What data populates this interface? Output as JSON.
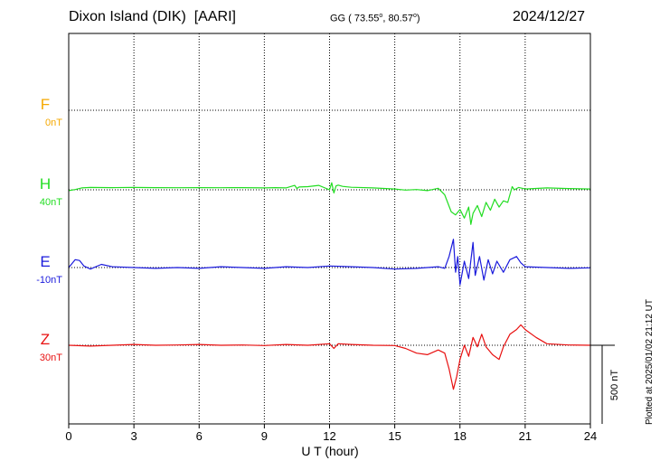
{
  "header": {
    "station": "Dixon Island (DIK)",
    "institute": "[AARI]",
    "coords_prefix": "GG ( 73.55",
    "coords_lat_sup": "o",
    "coords_mid": ",  80.57",
    "coords_lon_sup": "o",
    "coords_suffix": ")",
    "date": "2024/12/27"
  },
  "plotted_note": "Plotted at 2025/01/02 21:12 UT",
  "chart_data": {
    "type": "line",
    "xlabel": "U T (hour)",
    "xlim": [
      0,
      24
    ],
    "x_ticks": [
      0,
      3,
      6,
      9,
      12,
      15,
      18,
      21,
      24
    ],
    "grid": true,
    "scale_bar_label": "500 nT",
    "scale_bar_nT": 500,
    "series": [
      {
        "name": "F",
        "baseline_label": "0nT",
        "color": "#f5a800",
        "baseline_nT": 0,
        "x": [],
        "y": []
      },
      {
        "name": "H",
        "baseline_label": "40nT",
        "color": "#22dd22",
        "baseline_nT": 40,
        "x": [
          0,
          0.3,
          0.6,
          1,
          2,
          3,
          4,
          5,
          6,
          7,
          8,
          9,
          9.5,
          10,
          10.4,
          10.5,
          10.6,
          11,
          11.5,
          12,
          12.1,
          12.2,
          12.3,
          12.4,
          12.6,
          13,
          14,
          15,
          15.5,
          16,
          16.5,
          17,
          17.3,
          17.6,
          17.8,
          18,
          18.2,
          18.4,
          18.5,
          18.6,
          18.8,
          19,
          19.2,
          19.4,
          19.6,
          19.8,
          20,
          20.2,
          20.4,
          20.5,
          20.7,
          21,
          22,
          23,
          24
        ],
        "y": [
          35,
          42,
          52,
          55,
          54,
          55,
          54,
          53,
          54,
          53,
          54,
          52,
          54,
          52,
          68,
          48,
          58,
          60,
          68,
          40,
          85,
          20,
          65,
          70,
          62,
          56,
          52,
          45,
          38,
          42,
          35,
          50,
          8,
          -100,
          -120,
          -85,
          -140,
          -70,
          -180,
          -110,
          -60,
          -130,
          -40,
          -90,
          -20,
          -70,
          -30,
          -40,
          60,
          40,
          55,
          45,
          52,
          48,
          45
        ]
      },
      {
        "name": "E",
        "baseline_label": "-10nT",
        "color": "#1a1adc",
        "baseline_nT": -10,
        "x": [
          0,
          0.3,
          0.5,
          0.7,
          1,
          1.5,
          2,
          3,
          4,
          5,
          6,
          7,
          8,
          9,
          10,
          11,
          12,
          13,
          14,
          15,
          16,
          17,
          17.3,
          17.5,
          17.7,
          17.8,
          17.9,
          18,
          18.2,
          18.4,
          18.6,
          18.7,
          18.9,
          19.1,
          19.3,
          19.5,
          19.7,
          20,
          20.3,
          20.6,
          20.8,
          21,
          22,
          23,
          24
        ],
        "y": [
          -10,
          40,
          35,
          0,
          -20,
          10,
          -5,
          -10,
          -15,
          -10,
          -15,
          -5,
          -10,
          -15,
          -5,
          -10,
          0,
          -5,
          -10,
          -20,
          -15,
          -5,
          -15,
          60,
          170,
          -40,
          60,
          -120,
          30,
          -80,
          150,
          -60,
          60,
          -90,
          40,
          -50,
          30,
          -40,
          40,
          60,
          20,
          -5,
          -10,
          -15,
          -12
        ]
      },
      {
        "name": "Z",
        "baseline_label": "30nT",
        "color": "#e81010",
        "baseline_nT": 30,
        "x": [
          0,
          1,
          2,
          3,
          4,
          5,
          6,
          7,
          8,
          9,
          10,
          11,
          12,
          12.2,
          12.4,
          13,
          14,
          15,
          15.5,
          16,
          16.5,
          17,
          17.3,
          17.5,
          17.7,
          17.85,
          18,
          18.2,
          18.4,
          18.6,
          18.8,
          19,
          19.2,
          19.5,
          19.8,
          20,
          20.3,
          20.6,
          20.8,
          21,
          21.5,
          22,
          23,
          24
        ],
        "y": [
          30,
          25,
          30,
          35,
          30,
          32,
          35,
          30,
          32,
          28,
          35,
          30,
          40,
          10,
          40,
          35,
          30,
          28,
          10,
          -20,
          -30,
          0,
          -20,
          -120,
          -250,
          -170,
          -60,
          30,
          -40,
          80,
          20,
          100,
          20,
          -30,
          -60,
          20,
          100,
          130,
          160,
          130,
          80,
          40,
          32,
          30
        ]
      }
    ]
  }
}
